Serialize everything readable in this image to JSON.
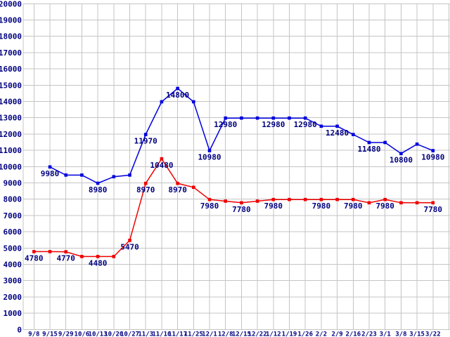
{
  "chart_data": {
    "type": "line",
    "title": "",
    "xlabel": "",
    "ylabel": "",
    "legend": "none",
    "grid": true,
    "grid_color": "#c4c4c4",
    "background_color": "#ffffff",
    "axis_label_color": "#000080",
    "point_label_color": "#000080",
    "y_axis": {
      "min": 0,
      "max": 20000,
      "step": 1000
    },
    "y_ticks": [
      "0",
      "1000",
      "2000",
      "3000",
      "4000",
      "5000",
      "6000",
      "7000",
      "8000",
      "9000",
      "10000",
      "11000",
      "12000",
      "13000",
      "14000",
      "15000",
      "16000",
      "17000",
      "18000",
      "19000",
      "20000"
    ],
    "x_labels": [
      "9/8",
      "9/15",
      "9/29",
      "10/6",
      "10/13",
      "10/20",
      "10/27",
      "11/3",
      "11/10",
      "11/17",
      "11/25",
      "12/1",
      "12/8",
      "12/15",
      "12/22",
      "1/12",
      "1/19",
      "1/26",
      "2/2",
      "2/9",
      "2/16",
      "2/23",
      "3/1",
      "3/8",
      "3/15",
      "3/22"
    ],
    "series": [
      {
        "name": "blue",
        "color": "#0000dd",
        "values": [
          null,
          9980,
          9480,
          9480,
          8980,
          9380,
          9480,
          11970,
          13980,
          14800,
          13980,
          10980,
          12980,
          12980,
          12980,
          12980,
          12980,
          12980,
          12480,
          12480,
          11970,
          11480,
          11480,
          10800,
          11380,
          10980
        ],
        "point_labels": [
          null,
          "9980",
          null,
          null,
          "8980",
          null,
          null,
          "11970",
          null,
          "14800",
          null,
          "10980",
          "12980",
          null,
          null,
          "12980",
          null,
          "12980",
          null,
          "12480",
          null,
          "11480",
          null,
          "10800",
          null,
          "10980"
        ]
      },
      {
        "name": "red",
        "color": "#ee0000",
        "values": [
          4780,
          4780,
          4770,
          4480,
          4480,
          4480,
          5470,
          8970,
          10480,
          8970,
          8730,
          7980,
          7880,
          7780,
          7880,
          7980,
          7980,
          7980,
          7980,
          7980,
          7980,
          7780,
          7980,
          7780,
          7780,
          7780
        ],
        "point_labels": [
          "4780",
          null,
          "4770",
          null,
          "4480",
          null,
          "5470",
          "8970",
          "10480",
          "8970",
          null,
          "7980",
          null,
          "7780",
          null,
          "7980",
          null,
          null,
          "7980",
          null,
          "7980",
          null,
          "7980",
          null,
          null,
          "7780"
        ]
      }
    ]
  }
}
